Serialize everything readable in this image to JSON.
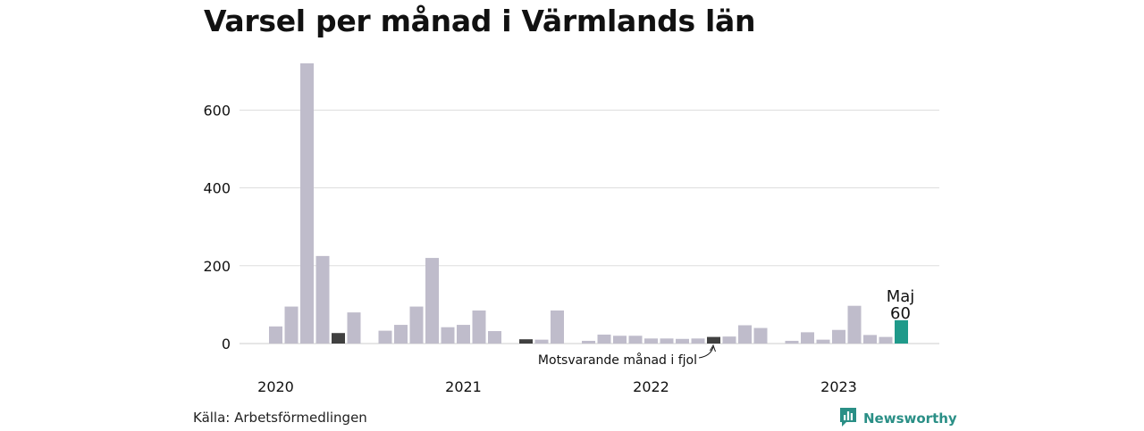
{
  "title": "Varsel per månad i Värmlands län",
  "source": "Källa: Arbetsförmedlingen",
  "brand": {
    "name": "Newsworthy",
    "icon": "newsworthy-logo-icon"
  },
  "colors": {
    "bar_default": "#bfbccb",
    "bar_reference": "#404040",
    "bar_current": "#1f9a8a",
    "grid": "#dddddd",
    "brand": "#2a8f86"
  },
  "chart_data": {
    "type": "bar",
    "title": "Varsel per månad i Värmlands län",
    "xlabel": "",
    "ylabel": "",
    "ylim": [
      0,
      720
    ],
    "yticks": [
      0,
      200,
      400,
      600
    ],
    "x_tick_labels": [
      "2020",
      "2021",
      "2022",
      "2023"
    ],
    "grid": true,
    "categories": [
      "2020-01",
      "2020-02",
      "2020-03",
      "2020-04",
      "2020-05",
      "2020-06",
      "2020-07",
      "2020-08",
      "2020-09",
      "2020-10",
      "2020-11",
      "2020-12",
      "2021-01",
      "2021-02",
      "2021-03",
      "2021-04",
      "2021-05",
      "2021-06",
      "2021-07",
      "2021-08",
      "2021-09",
      "2021-10",
      "2021-11",
      "2021-12",
      "2022-01",
      "2022-02",
      "2022-03",
      "2022-04",
      "2022-05",
      "2022-06",
      "2022-07",
      "2022-08",
      "2022-09",
      "2022-10",
      "2022-11",
      "2022-12",
      "2023-01",
      "2023-02",
      "2023-03",
      "2023-04",
      "2023-05"
    ],
    "values": [
      44,
      95,
      720,
      225,
      27,
      80,
      0,
      33,
      48,
      95,
      220,
      42,
      48,
      85,
      32,
      0,
      11,
      10,
      85,
      0,
      7,
      23,
      20,
      20,
      13,
      13,
      12,
      13,
      17,
      18,
      47,
      40,
      0,
      7,
      29,
      10,
      35,
      97,
      22,
      17,
      60
    ],
    "reference_indices": [
      4,
      16,
      28
    ],
    "current_index": 40,
    "annotations": {
      "current_label": "Maj",
      "current_value": "60",
      "reference_label": "Motsvarande månad i fjol"
    }
  }
}
